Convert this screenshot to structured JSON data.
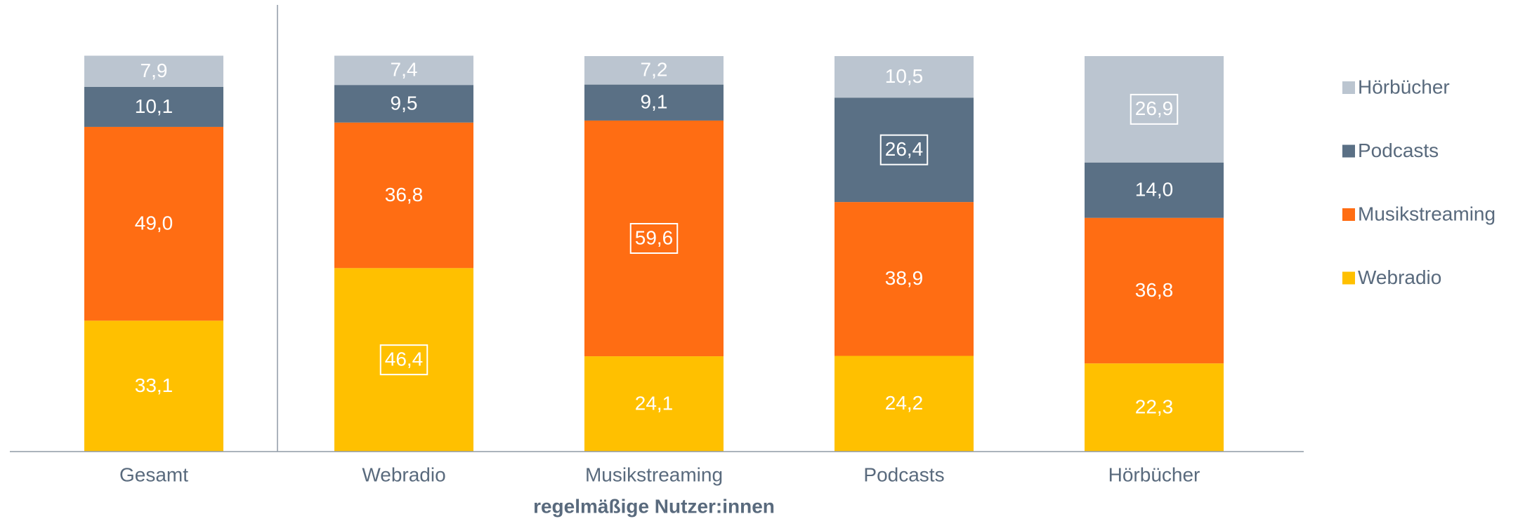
{
  "chart_data": {
    "type": "stacked_bar",
    "x_label": "regelmäßige Nutzer:innen",
    "categories": [
      "Gesamt",
      "Webradio",
      "Musikstreaming",
      "Podcasts",
      "Hörbücher"
    ],
    "series": [
      {
        "name": "Webradio",
        "color": "#ffc000",
        "values": [
          33.1,
          46.4,
          24.1,
          24.2,
          22.3
        ],
        "value_labels": [
          "33,1",
          "46,4",
          "24,1",
          "24,2",
          "22,3"
        ]
      },
      {
        "name": "Musikstreaming",
        "color": "#ff6d13",
        "values": [
          49.0,
          36.8,
          59.6,
          38.9,
          36.8
        ],
        "value_labels": [
          "49,0",
          "36,8",
          "59,6",
          "38,9",
          "36,8"
        ]
      },
      {
        "name": "Podcasts",
        "color": "#5a7085",
        "values": [
          10.1,
          9.5,
          9.1,
          26.4,
          14.0
        ],
        "value_labels": [
          "10,1",
          "9,5",
          "9,1",
          "26,4",
          "14,0"
        ]
      },
      {
        "name": "Hörbücher",
        "color": "#bbc5d0",
        "values": [
          7.9,
          7.4,
          7.2,
          10.5,
          26.9
        ],
        "value_labels": [
          "7,9",
          "7,4",
          "7,2",
          "10,5",
          "26,9"
        ]
      }
    ],
    "ylim": [
      0,
      100
    ],
    "legend": "right"
  }
}
